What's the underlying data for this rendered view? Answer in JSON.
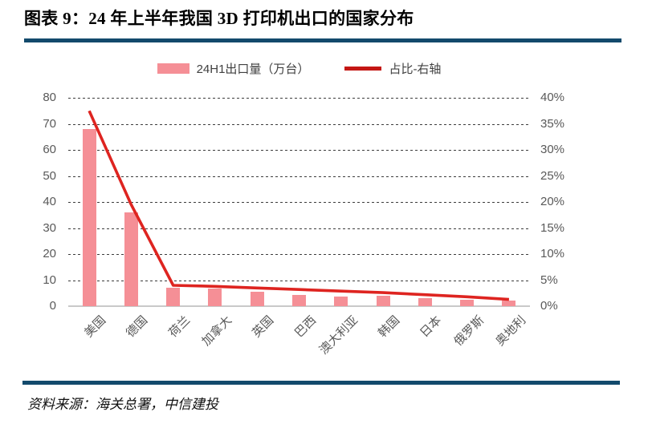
{
  "header": {
    "title": "图表 9：24 年上半年我国 3D 打印机出口的国家分布"
  },
  "footer": {
    "source": "资料来源：海关总署，中信建投"
  },
  "colors": {
    "bar": "#F58F96",
    "line": "#DE2420",
    "legend_line": "#C41714",
    "rule": "#134A6C",
    "axis_text": "#595959"
  },
  "chart_data": {
    "type": "bar",
    "title": "图表 9：24 年上半年我国 3D 打印机出口的国家分布",
    "categories": [
      "美国",
      "德国",
      "荷兰",
      "加拿大",
      "英国",
      "巴西",
      "澳大利亚",
      "韩国",
      "日本",
      "俄罗斯",
      "奥地利"
    ],
    "series": [
      {
        "name": "24H1出口量（万台）",
        "type": "bar",
        "axis": "left",
        "values": [
          68,
          36,
          7,
          6.8,
          5.6,
          4.4,
          3.8,
          4.1,
          3.2,
          2.5,
          2.3
        ]
      },
      {
        "name": "占比-右轴",
        "type": "line",
        "axis": "right",
        "unit": "%",
        "values": [
          37.5,
          19.5,
          4.0,
          3.8,
          3.5,
          3.2,
          2.9,
          2.6,
          2.2,
          1.8,
          1.3
        ]
      }
    ],
    "left_axis": {
      "min": 0,
      "max": 80,
      "step": 10
    },
    "right_axis": {
      "min": 0,
      "max": 40,
      "step": 5,
      "suffix": "%"
    },
    "grid": true,
    "legend_position": "top"
  }
}
